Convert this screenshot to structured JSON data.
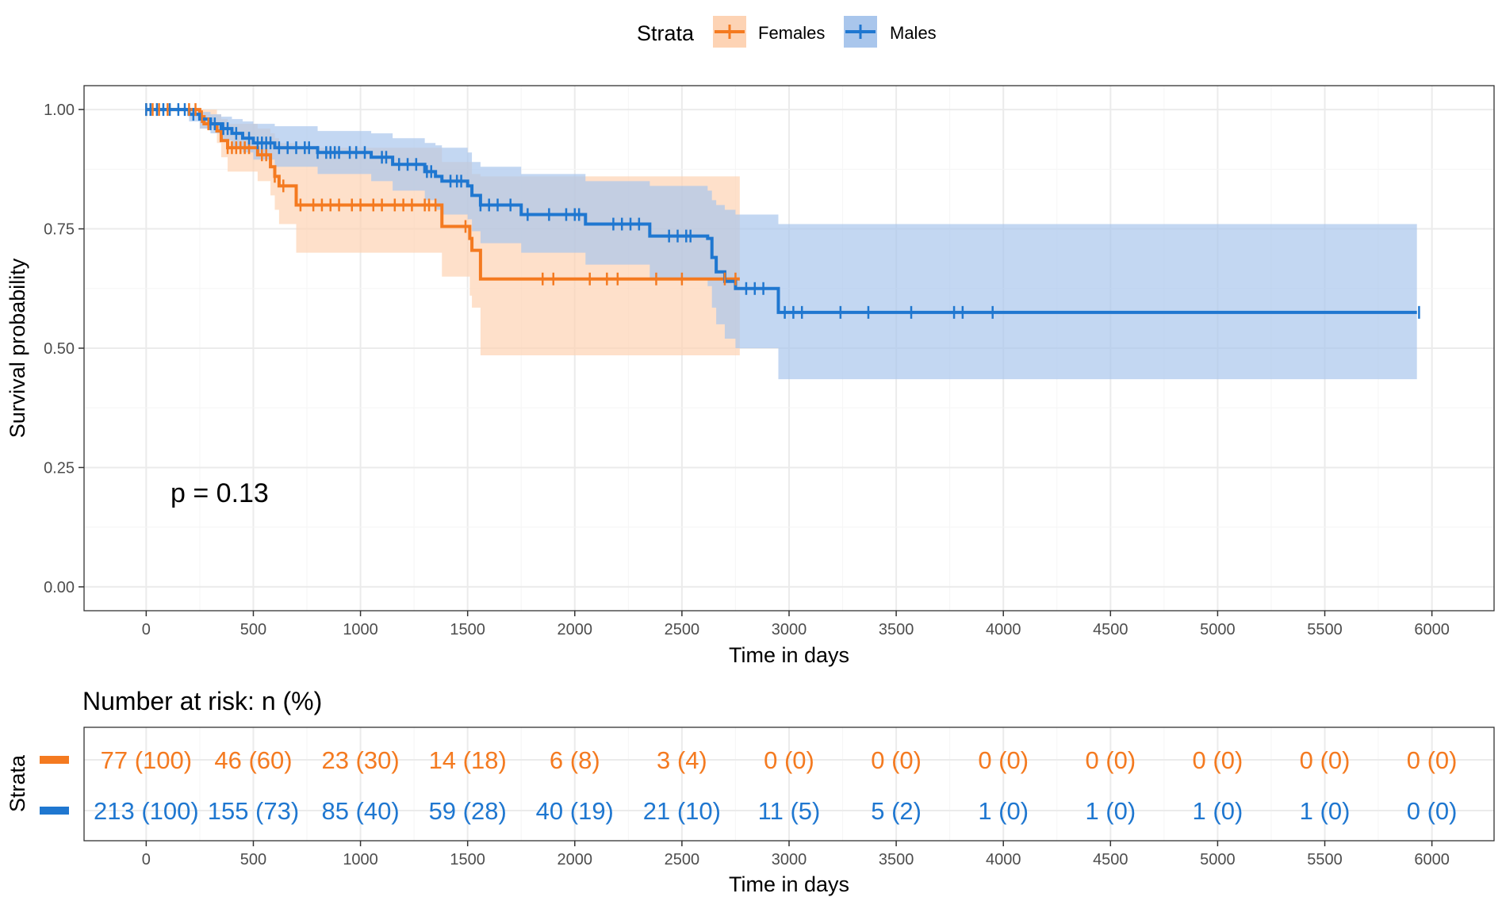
{
  "colors": {
    "females": "#F47A20",
    "males": "#1F77D0",
    "females_band": "#FDD3B4",
    "males_band": "#A9C6EC",
    "grid_major": "#EBEBEB",
    "grid_minor": "#F5F5F5",
    "panel_border": "#333333"
  },
  "legend": {
    "title": "Strata",
    "items": [
      {
        "key": "females",
        "label": "Females"
      },
      {
        "key": "males",
        "label": "Males"
      }
    ]
  },
  "chart_data": {
    "type": "line",
    "subtype": "kaplan-meier",
    "xlabel": "Time in days",
    "ylabel": "Survival probability",
    "xlim": [
      -290,
      6290
    ],
    "ylim": [
      -0.05,
      1.05
    ],
    "x_ticks": [
      0,
      500,
      1000,
      1500,
      2000,
      2500,
      3000,
      3500,
      4000,
      4500,
      5000,
      5500,
      6000
    ],
    "x_tick_labels": [
      "0",
      "500",
      "1000",
      "1500",
      "2000",
      "2500",
      "3000",
      "3500",
      "4000",
      "4500",
      "5000",
      "5500",
      "6000"
    ],
    "y_ticks": [
      0,
      0.25,
      0.5,
      0.75,
      1.0
    ],
    "y_tick_labels": [
      "0.00",
      "0.25",
      "0.50",
      "0.75",
      "1.00"
    ],
    "annotation": "p = 0.13",
    "series": [
      {
        "key": "females",
        "name": "Females",
        "step": [
          [
            0,
            1.0
          ],
          [
            250,
            0.985
          ],
          [
            270,
            0.97
          ],
          [
            330,
            0.955
          ],
          [
            350,
            0.935
          ],
          [
            380,
            0.92
          ],
          [
            500,
            0.92
          ],
          [
            520,
            0.905
          ],
          [
            580,
            0.88
          ],
          [
            600,
            0.86
          ],
          [
            620,
            0.84
          ],
          [
            700,
            0.8
          ],
          [
            1370,
            0.8
          ],
          [
            1380,
            0.755
          ],
          [
            1500,
            0.755
          ],
          [
            1510,
            0.73
          ],
          [
            1520,
            0.705
          ],
          [
            1560,
            0.645
          ],
          [
            2770,
            0.645
          ]
        ],
        "lower": [
          [
            0,
            1.0
          ],
          [
            250,
            0.96
          ],
          [
            330,
            0.93
          ],
          [
            350,
            0.9
          ],
          [
            380,
            0.87
          ],
          [
            500,
            0.87
          ],
          [
            520,
            0.85
          ],
          [
            580,
            0.82
          ],
          [
            600,
            0.79
          ],
          [
            620,
            0.76
          ],
          [
            700,
            0.7
          ],
          [
            1370,
            0.7
          ],
          [
            1380,
            0.65
          ],
          [
            1500,
            0.65
          ],
          [
            1510,
            0.61
          ],
          [
            1520,
            0.585
          ],
          [
            1560,
            0.485
          ],
          [
            2770,
            0.485
          ]
        ],
        "upper": [
          [
            0,
            1.0
          ],
          [
            250,
            1.0
          ],
          [
            330,
            0.99
          ],
          [
            350,
            0.98
          ],
          [
            380,
            0.97
          ],
          [
            500,
            0.97
          ],
          [
            520,
            0.96
          ],
          [
            580,
            0.95
          ],
          [
            600,
            0.94
          ],
          [
            620,
            0.93
          ],
          [
            700,
            0.92
          ],
          [
            1370,
            0.92
          ],
          [
            1380,
            0.89
          ],
          [
            1500,
            0.89
          ],
          [
            1520,
            0.865
          ],
          [
            1560,
            0.86
          ],
          [
            2770,
            0.86
          ]
        ],
        "censor": [
          0,
          30,
          60,
          100,
          200,
          230,
          260,
          290,
          380,
          400,
          420,
          440,
          460,
          480,
          540,
          560,
          600,
          640,
          720,
          780,
          820,
          860,
          900,
          960,
          1000,
          1060,
          1100,
          1160,
          1200,
          1240,
          1300,
          1320,
          1350,
          1490,
          1850,
          1900,
          2070,
          2150,
          2200,
          2380,
          2500,
          2700,
          2750
        ]
      },
      {
        "key": "males",
        "name": "Males",
        "step": [
          [
            0,
            1.0
          ],
          [
            200,
            0.99
          ],
          [
            250,
            0.98
          ],
          [
            300,
            0.97
          ],
          [
            350,
            0.96
          ],
          [
            400,
            0.95
          ],
          [
            450,
            0.94
          ],
          [
            500,
            0.93
          ],
          [
            600,
            0.92
          ],
          [
            800,
            0.91
          ],
          [
            1050,
            0.9
          ],
          [
            1150,
            0.885
          ],
          [
            1300,
            0.87
          ],
          [
            1350,
            0.86
          ],
          [
            1380,
            0.85
          ],
          [
            1500,
            0.84
          ],
          [
            1520,
            0.82
          ],
          [
            1560,
            0.8
          ],
          [
            1750,
            0.78
          ],
          [
            2050,
            0.76
          ],
          [
            2350,
            0.735
          ],
          [
            2620,
            0.73
          ],
          [
            2640,
            0.69
          ],
          [
            2660,
            0.66
          ],
          [
            2700,
            0.64
          ],
          [
            2750,
            0.625
          ],
          [
            2950,
            0.575
          ],
          [
            5930,
            0.575
          ]
        ],
        "lower": [
          [
            0,
            1.0
          ],
          [
            200,
            0.975
          ],
          [
            250,
            0.96
          ],
          [
            300,
            0.95
          ],
          [
            350,
            0.935
          ],
          [
            400,
            0.92
          ],
          [
            450,
            0.91
          ],
          [
            500,
            0.895
          ],
          [
            600,
            0.88
          ],
          [
            800,
            0.865
          ],
          [
            1050,
            0.85
          ],
          [
            1150,
            0.83
          ],
          [
            1300,
            0.81
          ],
          [
            1350,
            0.79
          ],
          [
            1380,
            0.78
          ],
          [
            1500,
            0.77
          ],
          [
            1520,
            0.745
          ],
          [
            1560,
            0.72
          ],
          [
            1750,
            0.7
          ],
          [
            2050,
            0.675
          ],
          [
            2350,
            0.645
          ],
          [
            2620,
            0.63
          ],
          [
            2640,
            0.585
          ],
          [
            2660,
            0.55
          ],
          [
            2700,
            0.52
          ],
          [
            2750,
            0.5
          ],
          [
            2950,
            0.435
          ],
          [
            5930,
            0.435
          ]
        ],
        "upper": [
          [
            0,
            1.0
          ],
          [
            200,
            1.0
          ],
          [
            250,
            0.995
          ],
          [
            300,
            0.99
          ],
          [
            350,
            0.985
          ],
          [
            400,
            0.98
          ],
          [
            450,
            0.975
          ],
          [
            500,
            0.97
          ],
          [
            600,
            0.965
          ],
          [
            800,
            0.955
          ],
          [
            1050,
            0.95
          ],
          [
            1150,
            0.94
          ],
          [
            1300,
            0.93
          ],
          [
            1350,
            0.925
          ],
          [
            1380,
            0.92
          ],
          [
            1500,
            0.91
          ],
          [
            1520,
            0.89
          ],
          [
            1560,
            0.88
          ],
          [
            1750,
            0.865
          ],
          [
            2050,
            0.85
          ],
          [
            2350,
            0.84
          ],
          [
            2620,
            0.83
          ],
          [
            2640,
            0.81
          ],
          [
            2660,
            0.8
          ],
          [
            2700,
            0.79
          ],
          [
            2750,
            0.78
          ],
          [
            2950,
            0.76
          ],
          [
            5930,
            0.76
          ]
        ],
        "censor": [
          0,
          20,
          50,
          80,
          110,
          150,
          180,
          220,
          300,
          320,
          360,
          380,
          420,
          480,
          520,
          540,
          560,
          580,
          620,
          660,
          700,
          740,
          760,
          800,
          840,
          860,
          880,
          900,
          950,
          980,
          1020,
          1100,
          1120,
          1180,
          1220,
          1260,
          1310,
          1330,
          1420,
          1450,
          1470,
          1560,
          1600,
          1640,
          1700,
          1780,
          1880,
          1960,
          2000,
          2020,
          2180,
          2220,
          2260,
          2300,
          2440,
          2480,
          2520,
          2540,
          2800,
          2840,
          2880,
          2980,
          3020,
          3060,
          3240,
          3370,
          3570,
          3770,
          3810,
          3950,
          5940
        ]
      }
    ]
  },
  "risk_table": {
    "title": "Number at risk: n (%)",
    "ylabel": "Strata",
    "xlabel": "Time in days",
    "times": [
      0,
      500,
      1000,
      1500,
      2000,
      2500,
      3000,
      3500,
      4000,
      4500,
      5000,
      5500,
      6000
    ],
    "x_tick_labels": [
      "0",
      "500",
      "1000",
      "1500",
      "2000",
      "2500",
      "3000",
      "3500",
      "4000",
      "4500",
      "5000",
      "5500",
      "6000"
    ],
    "rows": [
      {
        "key": "females",
        "values": [
          "77 (100)",
          "46 (60)",
          "23 (30)",
          "14 (18)",
          "6 (8)",
          "3 (4)",
          "0 (0)",
          "0 (0)",
          "0 (0)",
          "0 (0)",
          "0 (0)",
          "0 (0)",
          "0 (0)"
        ]
      },
      {
        "key": "males",
        "values": [
          "213 (100)",
          "155 (73)",
          "85 (40)",
          "59 (28)",
          "40 (19)",
          "21 (10)",
          "11 (5)",
          "5 (2)",
          "1 (0)",
          "1 (0)",
          "1 (0)",
          "1 (0)",
          "0 (0)"
        ]
      }
    ]
  }
}
